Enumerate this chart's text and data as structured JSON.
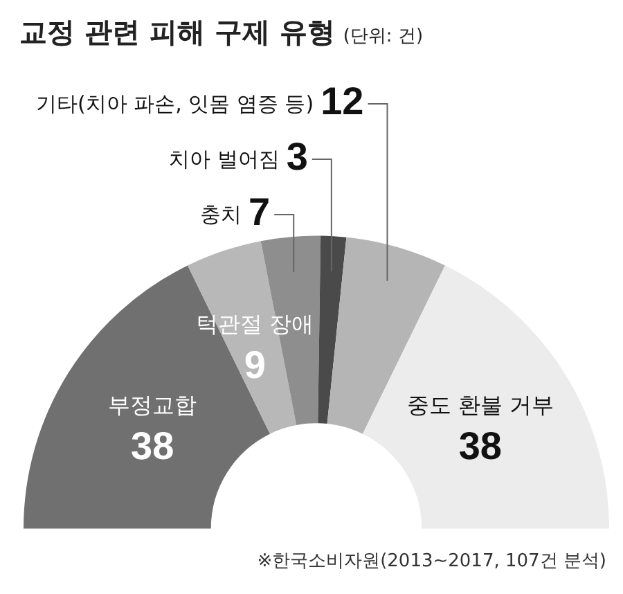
{
  "chart_data": {
    "type": "donut",
    "title": "교정 관련 피해 구제 유형",
    "subtitle": "(단위: 건)",
    "categories": [
      "부정교합",
      "턱관절 장애",
      "충치",
      "치아 벌어짐",
      "기타(치아 파손, 잇몸 염증 등)",
      "중도 환불 거부"
    ],
    "values": [
      38,
      9,
      7,
      3,
      12,
      38
    ],
    "colors": [
      "#707070",
      "#b8b8b8",
      "#8e8e8e",
      "#4a4a4a",
      "#b5b5b5",
      "#ececec"
    ],
    "data_labels": true,
    "legend": false,
    "annotations": [
      "※한국소비자원(2013~2017, 107건 분석)"
    ]
  }
}
